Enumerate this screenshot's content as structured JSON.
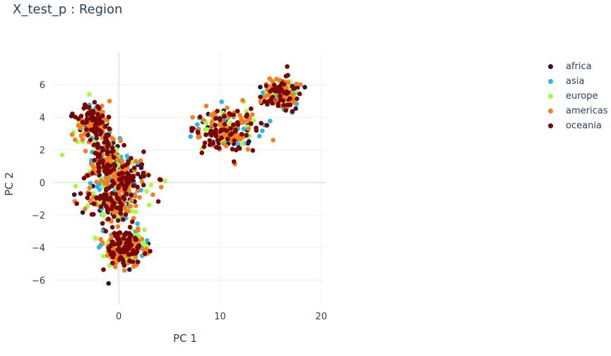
{
  "chart_data": {
    "type": "scatter",
    "title": "X_test_p : Region",
    "xlabel": "PC 1",
    "ylabel": "PC 2",
    "xlim": [
      -6.5,
      20.5
    ],
    "ylim": [
      -7.5,
      8
    ],
    "xticks": [
      0,
      10,
      20
    ],
    "yticks": [
      -6,
      -4,
      -2,
      0,
      2,
      4,
      6
    ],
    "grid": true,
    "legend_position": "top-right",
    "clusters": [
      {
        "cx": -2.4,
        "cy": 3.6,
        "sx": 1.1,
        "sy": 0.8,
        "w": 0.16
      },
      {
        "cx": -1.2,
        "cy": 1.4,
        "sx": 1.2,
        "sy": 0.8,
        "w": 0.09
      },
      {
        "cx": 0.2,
        "cy": 0.2,
        "sx": 2.0,
        "sy": 0.9,
        "w": 0.16
      },
      {
        "cx": -0.6,
        "cy": -1.3,
        "sx": 1.6,
        "sy": 0.8,
        "w": 0.12
      },
      {
        "cx": 0.5,
        "cy": -4.0,
        "sx": 1.3,
        "sy": 0.7,
        "w": 0.2
      },
      {
        "cx": 10.6,
        "cy": 3.3,
        "sx": 2.0,
        "sy": 0.9,
        "w": 0.16
      },
      {
        "cx": 16.2,
        "cy": 5.4,
        "sx": 1.2,
        "sy": 0.6,
        "w": 0.11
      }
    ],
    "series": [
      {
        "name": "africa",
        "color": "#30123b",
        "n": 180
      },
      {
        "name": "asia",
        "color": "#29b6e8",
        "n": 200
      },
      {
        "name": "europe",
        "color": "#a4fc3c",
        "n": 220
      },
      {
        "name": "americas",
        "color": "#f57f20",
        "n": 480
      },
      {
        "name": "oceania",
        "color": "#7a0403",
        "n": 420
      }
    ]
  }
}
